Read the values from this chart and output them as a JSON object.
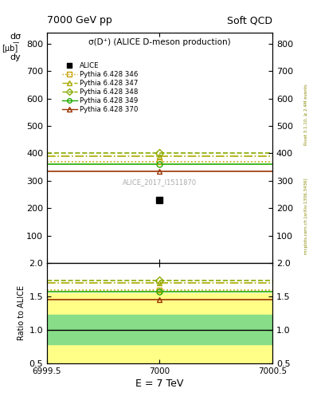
{
  "title_top": "7000 GeV pp",
  "title_right": "Soft QCD",
  "right_label1": "Rivet 3.1.10, ≥ 2.4M events",
  "right_label2": "mcplots.cern.ch [arXiv:1306.3436]",
  "plot_label": "ALICE_2017_I1511870",
  "sigma_label": "σ(D⁺) (ALICE D-meson production)",
  "ylabel_ratio": "Ratio to ALICE",
  "xlabel": "E = 7 TeV",
  "xlim": [
    6999.5,
    7000.5
  ],
  "ylim_main": [
    0,
    840
  ],
  "ylim_ratio": [
    0.5,
    2.0
  ],
  "data_x": 7000,
  "data_y": 230,
  "data_label": "ALICE",
  "error_band_yellow": [
    0.45,
    1.55
  ],
  "error_band_green": [
    0.78,
    1.22
  ],
  "pythia_lines": [
    {
      "label": "Pythia 6.428 346",
      "y": 368,
      "color": "#c8a000",
      "linestyle": "dotted",
      "marker": "s",
      "ratio": 1.6
    },
    {
      "label": "Pythia 6.428 347",
      "y": 390,
      "color": "#aaaa00",
      "linestyle": "dashdot",
      "marker": "^",
      "ratio": 1.7
    },
    {
      "label": "Pythia 6.428 348",
      "y": 400,
      "color": "#88aa00",
      "linestyle": "dashed",
      "marker": "D",
      "ratio": 1.74
    },
    {
      "label": "Pythia 6.428 349",
      "y": 360,
      "color": "#22aa00",
      "linestyle": "solid",
      "marker": "o",
      "ratio": 1.57
    },
    {
      "label": "Pythia 6.428 370",
      "y": 333,
      "color": "#993300",
      "linestyle": "solid",
      "marker": "^",
      "ratio": 1.45
    }
  ],
  "yticks_main": [
    100,
    200,
    300,
    400,
    500,
    600,
    700,
    800
  ],
  "yticks_ratio": [
    0.5,
    1.0,
    1.5,
    2.0
  ],
  "bg_color": "#ffffff"
}
